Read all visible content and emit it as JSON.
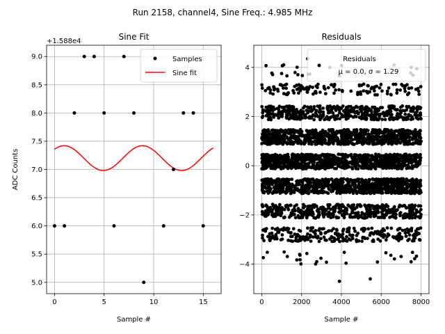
{
  "figure": {
    "suptitle": "Run 2158, channel4, Sine Freq.: 4.985 MHz"
  },
  "chart_data": [
    {
      "type": "scatter",
      "title": "Sine Fit",
      "xlabel": "Sample #",
      "ylabel": "ADC Counts",
      "offset_label": "+1.588e4",
      "xlim": [
        -0.8,
        16.8
      ],
      "ylim": [
        4.8,
        9.2
      ],
      "xticks": [
        0,
        5,
        10,
        15
      ],
      "yticks": [
        5.0,
        5.5,
        6.0,
        6.5,
        7.0,
        7.5,
        8.0,
        8.5,
        9.0
      ],
      "ytick_labels": [
        "5.0",
        "5.5",
        "6.0",
        "6.5",
        "7.0",
        "7.5",
        "8.0",
        "8.5",
        "9.0"
      ],
      "grid": true,
      "legend": {
        "position": "top-right",
        "entries": [
          "Samples",
          "Sine fit"
        ]
      },
      "series": [
        {
          "name": "Samples",
          "kind": "points",
          "color": "#000000",
          "x": [
            0,
            1,
            2,
            3,
            4,
            5,
            6,
            7,
            8,
            9,
            11,
            12,
            13,
            14,
            15
          ],
          "y": [
            6.0,
            6.0,
            8.0,
            9.0,
            9.0,
            8.0,
            6.0,
            9.0,
            8.0,
            5.0,
            6.0,
            7.0,
            8.0,
            8.0,
            6.0
          ]
        },
        {
          "name": "Sine fit",
          "kind": "line",
          "color": "#ff0000",
          "model": {
            "mean": 7.2,
            "amplitude": 0.22,
            "period": 7.9,
            "phase": 0.8,
            "x_start": 0,
            "x_end": 16
          }
        }
      ]
    },
    {
      "type": "scatter",
      "title": "Residuals",
      "xlabel": "Sample #",
      "ylabel": "",
      "xlim": [
        -400,
        8400
      ],
      "ylim": [
        -5.2,
        4.9
      ],
      "xticks": [
        0,
        2000,
        4000,
        6000,
        8000
      ],
      "yticks": [
        -4,
        -2,
        0,
        2,
        4
      ],
      "ytick_labels": [
        "−4",
        "−2",
        "0",
        "2",
        "4"
      ],
      "grid": true,
      "legend": {
        "position": "top-right",
        "entries": [
          "Residuals",
          "μ = 0.0, σ = 1.29"
        ]
      },
      "series": [
        {
          "name": "Residuals",
          "kind": "points",
          "color": "#000000",
          "x_range": [
            0,
            8000
          ],
          "bands": [
            {
              "center": 1.17,
              "spread": 0.3,
              "count": 900
            },
            {
              "center": 0.17,
              "spread": 0.3,
              "count": 900
            },
            {
              "center": -0.83,
              "spread": 0.3,
              "count": 900
            },
            {
              "center": 2.15,
              "spread": 0.28,
              "count": 450
            },
            {
              "center": -1.85,
              "spread": 0.28,
              "count": 450
            },
            {
              "center": 3.1,
              "spread": 0.22,
              "count": 130
            },
            {
              "center": -2.8,
              "spread": 0.28,
              "count": 260
            },
            {
              "center": 3.9,
              "spread": 0.25,
              "count": 20
            },
            {
              "center": -3.75,
              "spread": 0.25,
              "count": 25
            }
          ],
          "outliers": [
            {
              "x": 3900,
              "y": -4.7
            },
            {
              "x": 5450,
              "y": -4.6
            },
            {
              "x": 2300,
              "y": 4.35
            },
            {
              "x": 1100,
              "y": 4.1
            }
          ]
        }
      ]
    }
  ]
}
